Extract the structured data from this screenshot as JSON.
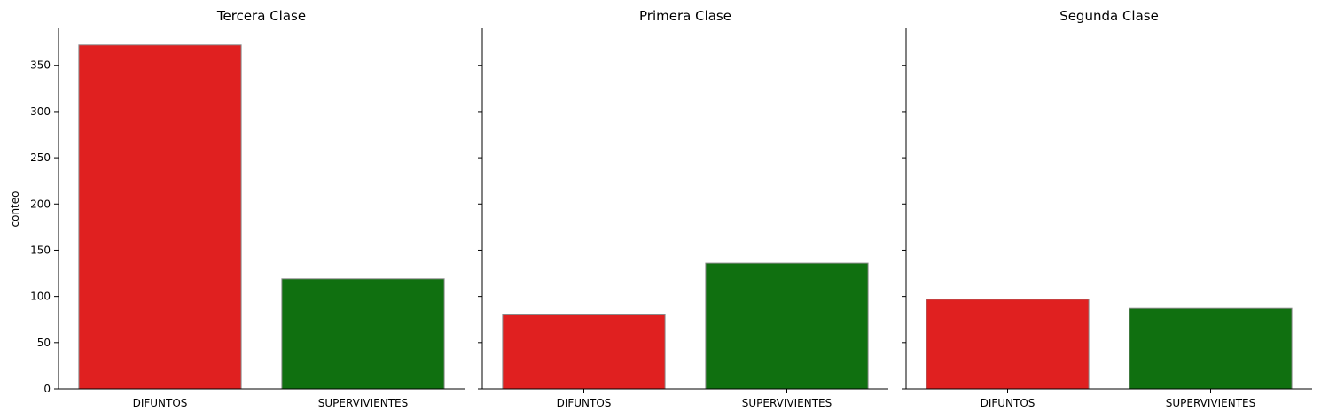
{
  "chart_data": {
    "type": "bar",
    "layout": "facets",
    "ylabel": "conteo",
    "ylim": [
      0,
      390
    ],
    "yticks": [
      0,
      50,
      100,
      150,
      200,
      250,
      300,
      350
    ],
    "categories": [
      "DIFUNTOS",
      "SUPERVIVIENTES"
    ],
    "colors": [
      "#e02020",
      "#107010"
    ],
    "grid": false,
    "facets": [
      {
        "title": "Tercera Clase",
        "values": [
          372,
          119
        ]
      },
      {
        "title": "Primera Clase",
        "values": [
          80,
          136
        ]
      },
      {
        "title": "Segunda Clase",
        "values": [
          97,
          87
        ]
      }
    ]
  }
}
